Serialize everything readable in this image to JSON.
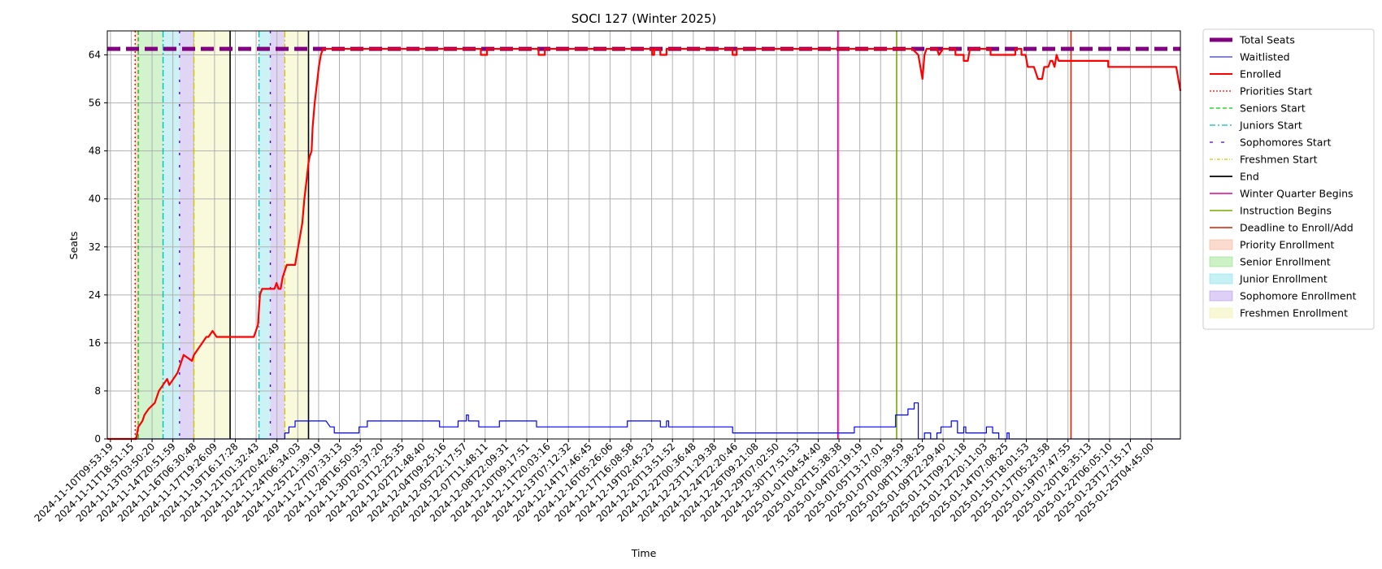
{
  "chart_data": {
    "type": "line",
    "title": "SOCI 127 (Winter 2025)",
    "xlabel": "Time",
    "ylabel": "Seats",
    "ylim": [
      0,
      68
    ],
    "yticks": [
      0,
      8,
      16,
      24,
      32,
      40,
      48,
      56,
      64
    ],
    "grid": true,
    "legend_position": "outside-right",
    "x_tick_labels": [
      "2024-11-10T09:53:19",
      "2024-11-11T18:51:15",
      "2024-11-13T03:50:20",
      "2024-11-14T20:51:59",
      "2024-11-16T06:30:48",
      "2024-11-17T19:26:09",
      "2024-11-19T16:17:28",
      "2024-11-21T01:32:43",
      "2024-11-22T20:42:49",
      "2024-11-24T06:34:03",
      "2024-11-25T21:39:19",
      "2024-11-27T07:33:13",
      "2024-11-28T16:50:35",
      "2024-11-30T02:37:20",
      "2024-12-01T12:25:35",
      "2024-12-02T21:48:40",
      "2024-12-04T09:25:16",
      "2024-12-05T22:17:57",
      "2024-12-07T11:48:11",
      "2024-12-08T22:09:31",
      "2024-12-10T09:17:51",
      "2024-12-11T20:03:16",
      "2024-12-13T07:12:32",
      "2024-12-14T17:46:45",
      "2024-12-16T05:26:06",
      "2024-12-17T16:08:58",
      "2024-12-19T02:45:23",
      "2024-12-20T13:51:52",
      "2024-12-22T00:36:48",
      "2024-12-23T11:29:38",
      "2024-12-24T22:20:46",
      "2024-12-26T09:21:08",
      "2024-12-29T07:02:50",
      "2024-12-30T17:51:53",
      "2025-01-01T04:54:40",
      "2025-01-02T15:38:38",
      "2025-01-04T02:19:19",
      "2025-01-05T13:17:01",
      "2025-01-07T00:39:59",
      "2025-01-08T11:38:25",
      "2025-01-09T22:29:40",
      "2025-01-11T09:21:18",
      "2025-01-12T20:11:03",
      "2025-01-14T07:08:25",
      "2025-01-15T18:01:53",
      "2025-01-17T05:23:58",
      "2025-01-19T07:47:55",
      "2025-01-20T18:35:13",
      "2025-01-22T06:05:10",
      "2025-01-23T17:15:17",
      "2025-01-25T04:45:00"
    ],
    "series": [
      {
        "name": "Total Seats",
        "color": "#800080",
        "style": "dashed-thick",
        "points": [
          [
            0,
            65
          ],
          [
            52,
            65
          ]
        ]
      },
      {
        "name": "Waitlisted",
        "color": "#0000ff",
        "style": "solid-thin",
        "points": [
          [
            0,
            0
          ],
          [
            8.6,
            0
          ],
          [
            8.6,
            1
          ],
          [
            8.8,
            1
          ],
          [
            8.8,
            2
          ],
          [
            9.1,
            2
          ],
          [
            9.1,
            3
          ],
          [
            10.6,
            3
          ],
          [
            10.8,
            2
          ],
          [
            11,
            2
          ],
          [
            11,
            1
          ],
          [
            12.2,
            1
          ],
          [
            12.2,
            2
          ],
          [
            12.6,
            2
          ],
          [
            12.6,
            3
          ],
          [
            16.1,
            3
          ],
          [
            16.1,
            2
          ],
          [
            17,
            2
          ],
          [
            17,
            3
          ],
          [
            17.4,
            3
          ],
          [
            17.4,
            4
          ],
          [
            17.5,
            4
          ],
          [
            17.5,
            3
          ],
          [
            18,
            3
          ],
          [
            18,
            2
          ],
          [
            19,
            2
          ],
          [
            19,
            3
          ],
          [
            20.8,
            3
          ],
          [
            20.8,
            2
          ],
          [
            25.2,
            2
          ],
          [
            25.2,
            3
          ],
          [
            26.8,
            3
          ],
          [
            26.8,
            2
          ],
          [
            27.1,
            2
          ],
          [
            27.1,
            3
          ],
          [
            27.2,
            3
          ],
          [
            27.2,
            2
          ],
          [
            30.3,
            2
          ],
          [
            30.3,
            1
          ],
          [
            36.2,
            1
          ],
          [
            36.2,
            2
          ],
          [
            38.2,
            2
          ],
          [
            38.2,
            4
          ],
          [
            38.8,
            4
          ],
          [
            38.8,
            5
          ],
          [
            39.1,
            5
          ],
          [
            39.1,
            6
          ],
          [
            39.3,
            6
          ],
          [
            39.3,
            0
          ],
          [
            39.6,
            0
          ],
          [
            39.6,
            1
          ],
          [
            39.9,
            1
          ],
          [
            39.9,
            0
          ],
          [
            40.2,
            0
          ],
          [
            40.2,
            1
          ],
          [
            40.4,
            1
          ],
          [
            40.4,
            2
          ],
          [
            40.9,
            2
          ],
          [
            40.9,
            3
          ],
          [
            41.2,
            3
          ],
          [
            41.2,
            1
          ],
          [
            41.5,
            1
          ],
          [
            41.5,
            2
          ],
          [
            41.6,
            2
          ],
          [
            41.6,
            1
          ],
          [
            42.6,
            1
          ],
          [
            42.6,
            2
          ],
          [
            42.9,
            2
          ],
          [
            42.9,
            1
          ],
          [
            43.2,
            1
          ],
          [
            43.2,
            0
          ],
          [
            43.6,
            0
          ],
          [
            43.6,
            1
          ],
          [
            43.7,
            1
          ],
          [
            43.7,
            0
          ],
          [
            52,
            0
          ]
        ]
      },
      {
        "name": "Enrolled",
        "color": "#ff0000",
        "style": "solid-thick",
        "points": [
          [
            0,
            0
          ],
          [
            1.4,
            0
          ],
          [
            1.5,
            2
          ],
          [
            1.7,
            3
          ],
          [
            1.8,
            4
          ],
          [
            2,
            5
          ],
          [
            2.3,
            6
          ],
          [
            2.5,
            8
          ],
          [
            2.7,
            9
          ],
          [
            2.9,
            10
          ],
          [
            3,
            9
          ],
          [
            3.4,
            11
          ],
          [
            3.6,
            13
          ],
          [
            3.7,
            14
          ],
          [
            4.1,
            13
          ],
          [
            4.2,
            14
          ],
          [
            4.4,
            15
          ],
          [
            4.6,
            16
          ],
          [
            4.8,
            17
          ],
          [
            4.9,
            17
          ],
          [
            5.1,
            18
          ],
          [
            5.3,
            17
          ],
          [
            5.5,
            17
          ],
          [
            6.8,
            17
          ],
          [
            7.1,
            17
          ],
          [
            7.2,
            18
          ],
          [
            7.3,
            19
          ],
          [
            7.4,
            24
          ],
          [
            7.5,
            25
          ],
          [
            8.1,
            25
          ],
          [
            8.2,
            26
          ],
          [
            8.3,
            25
          ],
          [
            8.4,
            25
          ],
          [
            8.5,
            27
          ],
          [
            8.6,
            28
          ],
          [
            8.7,
            29
          ],
          [
            9.1,
            29
          ],
          [
            9.2,
            31
          ],
          [
            9.3,
            33
          ],
          [
            9.45,
            36
          ],
          [
            9.55,
            40
          ],
          [
            9.65,
            43
          ],
          [
            9.75,
            46
          ],
          [
            9.8,
            47
          ],
          [
            9.9,
            48
          ],
          [
            9.95,
            52
          ],
          [
            10.05,
            56
          ],
          [
            10.15,
            59
          ],
          [
            10.25,
            62
          ],
          [
            10.35,
            64
          ],
          [
            10.45,
            65
          ],
          [
            18.1,
            65
          ],
          [
            18.1,
            64
          ],
          [
            18.4,
            64
          ],
          [
            18.4,
            65
          ],
          [
            20.9,
            65
          ],
          [
            20.9,
            64
          ],
          [
            21.2,
            64
          ],
          [
            21.2,
            65
          ],
          [
            26.4,
            65
          ],
          [
            26.4,
            64
          ],
          [
            26.5,
            64
          ],
          [
            26.5,
            65
          ],
          [
            26.8,
            65
          ],
          [
            26.8,
            64
          ],
          [
            27.1,
            64
          ],
          [
            27.1,
            65
          ],
          [
            30.3,
            65
          ],
          [
            30.3,
            64
          ],
          [
            30.5,
            64
          ],
          [
            30.5,
            65
          ],
          [
            39,
            65
          ],
          [
            39.3,
            64
          ],
          [
            39.4,
            62
          ],
          [
            39.5,
            60
          ],
          [
            39.6,
            64
          ],
          [
            39.7,
            65
          ],
          [
            40.2,
            65
          ],
          [
            40.3,
            64
          ],
          [
            40.5,
            65
          ],
          [
            41.1,
            65
          ],
          [
            41.1,
            64
          ],
          [
            41.5,
            64
          ],
          [
            41.5,
            63
          ],
          [
            41.7,
            63
          ],
          [
            41.8,
            65
          ],
          [
            42.8,
            65
          ],
          [
            42.8,
            64
          ],
          [
            44,
            64
          ],
          [
            44,
            65
          ],
          [
            44.3,
            65
          ],
          [
            44.3,
            64
          ],
          [
            44.5,
            64
          ],
          [
            44.6,
            62
          ],
          [
            44.9,
            62
          ],
          [
            45,
            61
          ],
          [
            45.1,
            60
          ],
          [
            45.3,
            60
          ],
          [
            45.4,
            62
          ],
          [
            45.6,
            62
          ],
          [
            45.7,
            63
          ],
          [
            45.8,
            63
          ],
          [
            45.9,
            62
          ],
          [
            46,
            64
          ],
          [
            46.1,
            63
          ],
          [
            48.5,
            63
          ],
          [
            48.5,
            62
          ],
          [
            51.6,
            62
          ],
          [
            51.8,
            62
          ],
          [
            52,
            58
          ]
        ]
      }
    ],
    "vertical_markers": [
      {
        "name": "Priorities Start",
        "color": "#ff0000",
        "style": "dotted",
        "x": [
          1.35
        ]
      },
      {
        "name": "Seniors Start",
        "color": "#00cc00",
        "style": "dashed",
        "x": [
          1.5
        ]
      },
      {
        "name": "Juniors Start",
        "color": "#00bfbf",
        "style": "dashdot",
        "x": [
          2.7,
          7.35
        ]
      },
      {
        "name": "Sophomores Start",
        "color": "#5500cc",
        "style": "sparse",
        "x": [
          3.5,
          7.9
        ]
      },
      {
        "name": "Freshmen Start",
        "color": "#d4c800",
        "style": "dashdot",
        "x": [
          4.2,
          8.6
        ]
      },
      {
        "name": "End",
        "color": "#000000",
        "style": "solid",
        "x": [
          5.95,
          9.75
        ]
      },
      {
        "name": "Winter Quarter Begins",
        "color": "#e0009a",
        "style": "solid",
        "x": [
          35.4
        ]
      },
      {
        "name": "Instruction Begins",
        "color": "#7aa800",
        "style": "solid",
        "x": [
          38.25
        ]
      },
      {
        "name": "Deadline to Enroll/Add",
        "color": "#d42000",
        "style": "solid",
        "x": [
          46.7
        ]
      }
    ],
    "regions": [
      {
        "name": "Priority Enrollment",
        "color": "#f4a582",
        "ranges": [
          [
            1.35,
            1.5
          ]
        ]
      },
      {
        "name": "Senior Enrollment",
        "color": "#7fdc6f",
        "ranges": [
          [
            1.5,
            2.7
          ]
        ]
      },
      {
        "name": "Junior Enrollment",
        "color": "#6fdbe6",
        "ranges": [
          [
            2.7,
            3.5
          ],
          [
            7.35,
            7.9
          ]
        ]
      },
      {
        "name": "Sophomore Enrollment",
        "color": "#a986e6",
        "ranges": [
          [
            3.5,
            4.2
          ],
          [
            7.9,
            8.6
          ]
        ]
      },
      {
        "name": "Freshmen Enrollment",
        "color": "#eded9a",
        "ranges": [
          [
            4.2,
            5.95
          ],
          [
            8.6,
            9.75
          ]
        ]
      }
    ],
    "legend": [
      {
        "label": "Total Seats",
        "kind": "line",
        "color": "#800080",
        "dash": "",
        "width": 5
      },
      {
        "label": "Waitlisted",
        "kind": "line",
        "color": "#0000ff",
        "dash": "",
        "width": 1
      },
      {
        "label": "Enrolled",
        "kind": "line",
        "color": "#ff0000",
        "dash": "",
        "width": 2
      },
      {
        "label": "Priorities Start",
        "kind": "line",
        "color": "#ff0000",
        "dash": "2,2",
        "width": 1.3
      },
      {
        "label": "Seniors Start",
        "kind": "line",
        "color": "#00cc00",
        "dash": "5,3",
        "width": 1.3
      },
      {
        "label": "Juniors Start",
        "kind": "line",
        "color": "#00bfbf",
        "dash": "7,3,2,3",
        "width": 1.3
      },
      {
        "label": "Sophomores Start",
        "kind": "line",
        "color": "#5500cc",
        "dash": "4,10",
        "width": 1.3
      },
      {
        "label": "Freshmen Start",
        "kind": "line",
        "color": "#d4c800",
        "dash": "4,2,1,2",
        "width": 1.3
      },
      {
        "label": "End",
        "kind": "line",
        "color": "#000000",
        "dash": "",
        "width": 1.8
      },
      {
        "label": "Winter Quarter Begins",
        "kind": "line",
        "color": "#e0009a",
        "dash": "",
        "width": 1.5
      },
      {
        "label": "Instruction Begins",
        "kind": "line",
        "color": "#7aa800",
        "dash": "",
        "width": 1.5
      },
      {
        "label": "Deadline to Enroll/Add",
        "kind": "line",
        "color": "#d42000",
        "dash": "",
        "width": 1.5
      },
      {
        "label": "Priority Enrollment",
        "kind": "patch",
        "color": "#f4a582"
      },
      {
        "label": "Senior Enrollment",
        "kind": "patch",
        "color": "#7fdc6f"
      },
      {
        "label": "Junior Enrollment",
        "kind": "patch",
        "color": "#6fdbe6"
      },
      {
        "label": "Sophomore Enrollment",
        "kind": "patch",
        "color": "#a986e6"
      },
      {
        "label": "Freshmen Enrollment",
        "kind": "patch",
        "color": "#eded9a"
      }
    ]
  }
}
